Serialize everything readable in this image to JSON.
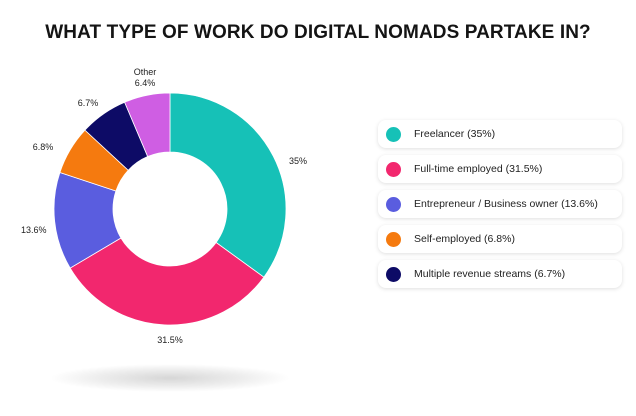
{
  "chart_data": {
    "type": "pie",
    "title": "WHAT TYPE OF WORK DO DIGITAL NOMADS PARTAKE IN?",
    "slices": [
      {
        "name": "Freelancer",
        "value": 35,
        "label": "35%",
        "color": "#16c1b7"
      },
      {
        "name": "Full-time employed",
        "value": 31.5,
        "label": "31.5%",
        "color": "#f2276e"
      },
      {
        "name": "Entrepreneur / Business owner",
        "value": 13.6,
        "label": "13.6%",
        "color": "#5a5ddf"
      },
      {
        "name": "Self-employed",
        "value": 6.8,
        "label": "6.8%",
        "color": "#f57a0f"
      },
      {
        "name": "Multiple revenue streams",
        "value": 6.7,
        "label": "6.7%",
        "color": "#0d0b66"
      },
      {
        "name": "Other",
        "value": 6.4,
        "label": "6.4%",
        "color": "#cf5ee3"
      }
    ],
    "legend": {
      "position": "right",
      "items": [
        "Freelancer (35%)",
        "Full-time employed (31.5%)",
        "Entrepreneur / Business owner (13.6%)",
        "Self-employed (6.8%)",
        "Multiple revenue streams (6.7%)"
      ]
    }
  }
}
